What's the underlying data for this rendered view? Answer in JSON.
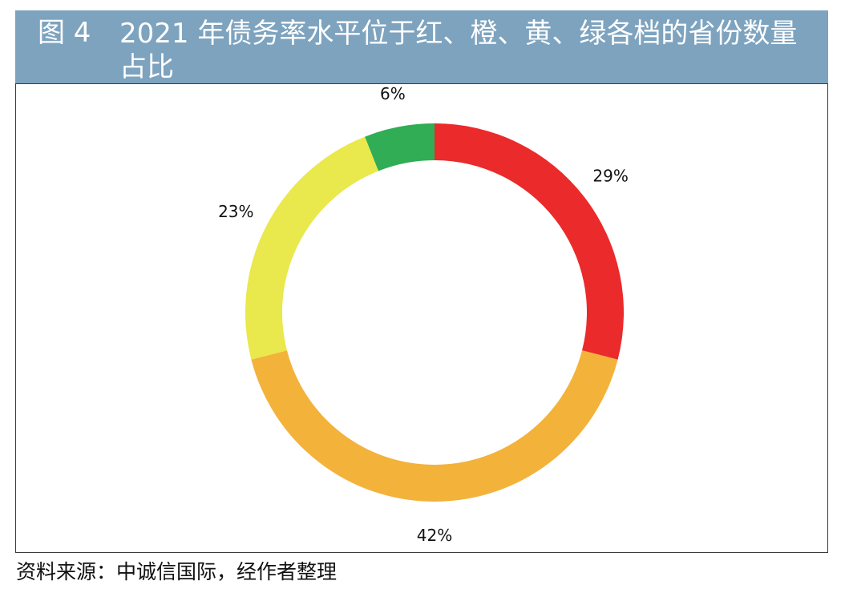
{
  "header": {
    "figure_number": "图 4",
    "title": "2021 年债务率水平位于红、橙、黄、绿各档的省份数量占比"
  },
  "footer": {
    "source": "资料来源：中诚信国际，经作者整理"
  },
  "chart_data": {
    "type": "pie",
    "donut": true,
    "title": "2021 年债务率水平位于红、橙、黄、绿各档的省份数量占比",
    "unit": "%",
    "slices": [
      {
        "label": "29%",
        "value": 29,
        "color": "#ea2a2b"
      },
      {
        "label": "42%",
        "value": 42,
        "color": "#f3b23a"
      },
      {
        "label": "23%",
        "value": 23,
        "color": "#e9e84c"
      },
      {
        "label": "6%",
        "value": 6,
        "color": "#30ad55"
      }
    ]
  }
}
